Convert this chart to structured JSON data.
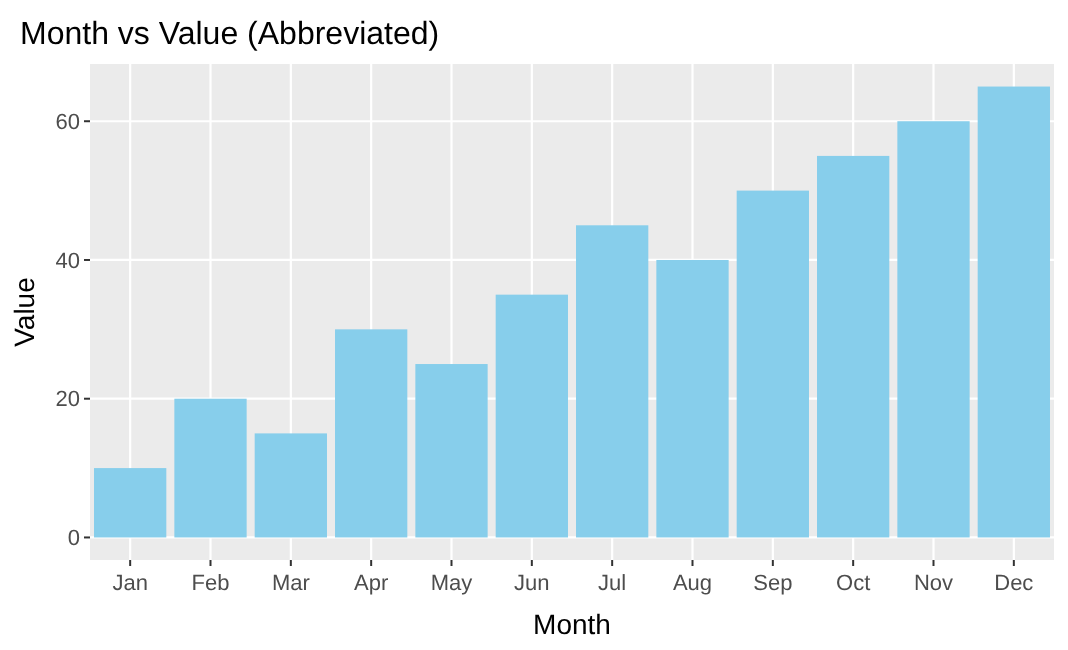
{
  "chart_data": {
    "type": "bar",
    "title": "Month vs Value (Abbreviated)",
    "xlabel": "Month",
    "ylabel": "Value",
    "categories": [
      "Jan",
      "Feb",
      "Mar",
      "Apr",
      "May",
      "Jun",
      "Jul",
      "Aug",
      "Sep",
      "Oct",
      "Nov",
      "Dec"
    ],
    "values": [
      10,
      20,
      15,
      30,
      25,
      35,
      45,
      40,
      50,
      55,
      60,
      65
    ],
    "color": "#87ceeb",
    "ylim": [
      -3.25,
      68.25
    ],
    "yticks": [
      0,
      20,
      40,
      60
    ],
    "grid": true
  }
}
